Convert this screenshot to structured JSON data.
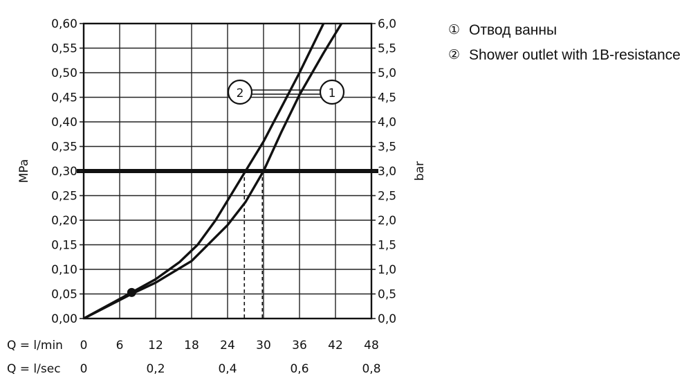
{
  "chart_data": {
    "type": "line",
    "ylabel_left": "MPa",
    "ylabel_right": "bar",
    "x_label_min": "Q = l/min",
    "x_label_sec": "Q = l/sec",
    "x_ticks_min": [
      "0",
      "6",
      "12",
      "18",
      "24",
      "30",
      "36",
      "42",
      "48"
    ],
    "x_ticks_sec": [
      "0",
      "0,2",
      "0,4",
      "0,6",
      "0,8"
    ],
    "y_ticks_left": [
      "0,00",
      "0,05",
      "0,10",
      "0,15",
      "0,20",
      "0,25",
      "0,30",
      "0,35",
      "0,40",
      "0,45",
      "0,50",
      "0,55",
      "0,60"
    ],
    "y_ticks_right": [
      "0,0",
      "0,5",
      "1,0",
      "1,5",
      "2,0",
      "2,5",
      "3,0",
      "3,5",
      "4,0",
      "4,5",
      "5,0",
      "5,5",
      "6,0"
    ],
    "xlim": [
      0,
      48
    ],
    "ylim": [
      0,
      0.6
    ],
    "grid": true,
    "reference_line": {
      "y": 0.3
    },
    "marker_point": {
      "x": 8,
      "y": 0.053
    },
    "series": [
      {
        "label": "1",
        "x": [
          0,
          8,
          12,
          18,
          24,
          27,
          30,
          33,
          36,
          40,
          43
        ],
        "y": [
          0,
          0.05,
          0.073,
          0.117,
          0.19,
          0.237,
          0.3,
          0.38,
          0.455,
          0.54,
          0.6
        ]
      },
      {
        "label": "2",
        "x": [
          0,
          8,
          12,
          16,
          19,
          22,
          24,
          27,
          30,
          33,
          36,
          40
        ],
        "y": [
          0,
          0.053,
          0.08,
          0.115,
          0.15,
          0.2,
          0.24,
          0.3,
          0.36,
          0.43,
          0.5,
          0.6
        ]
      }
    ],
    "dashed_markers": [
      {
        "x": 26.8,
        "y": 0.3
      },
      {
        "x": 29.8,
        "y": 0.3
      }
    ],
    "curve_labels": [
      "2",
      "1"
    ]
  },
  "legend": [
    {
      "mark": "①",
      "text": "Отвод ванны"
    },
    {
      "mark": "②",
      "text": "Shower outlet with 1B-resistance"
    }
  ]
}
